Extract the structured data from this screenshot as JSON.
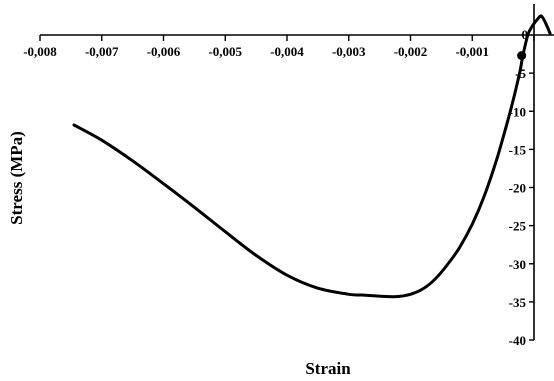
{
  "chart_data": {
    "type": "line",
    "title": "",
    "xlabel": "Strain",
    "ylabel": "Stress (MPa)",
    "xlim": [
      -0.008,
      0.0003
    ],
    "ylim": [
      -40,
      3
    ],
    "x_ticks": [
      -0.008,
      -0.007,
      -0.006,
      -0.005,
      -0.004,
      -0.003,
      -0.002,
      -0.001,
      0
    ],
    "x_tick_labels": [
      "-0,008",
      "-0,007",
      "-0,006",
      "-0,005",
      "-0,004",
      "-0,003",
      "-0,002",
      "-0,001",
      "0"
    ],
    "y_ticks": [
      0,
      -5,
      -10,
      -15,
      -20,
      -25,
      -30,
      -35,
      -40
    ],
    "y_tick_labels": [
      "0",
      "-5",
      "-10",
      "-15",
      "-20",
      "-25",
      "-30",
      "-35",
      "-40"
    ],
    "grid": false,
    "legend": "none",
    "line_color": "#000000",
    "series": [
      {
        "x": [
          -0.00745,
          -0.007,
          -0.0065,
          -0.006,
          -0.0055,
          -0.005,
          -0.0045,
          -0.004,
          -0.0035,
          -0.003,
          -0.0028,
          -0.0026,
          -0.0024,
          -0.0022,
          -0.002,
          -0.0018,
          -0.0016,
          -0.0014,
          -0.0012,
          -0.001,
          -0.0008,
          -0.0006,
          -0.0004,
          -0.0003,
          -0.00022,
          -0.00018,
          -0.0001,
          -4e-05,
          0.0,
          4e-05,
          8e-05,
          0.00011,
          0.00014,
          0.00018,
          0.00022,
          0.00026
        ],
        "y": [
          -11.8,
          -13.8,
          -16.5,
          -19.5,
          -22.6,
          -25.8,
          -28.9,
          -31.5,
          -33.2,
          -34.0,
          -34.1,
          -34.2,
          -34.3,
          -34.3,
          -34.0,
          -33.3,
          -32.0,
          -30.1,
          -27.8,
          -24.8,
          -21.0,
          -16.2,
          -10.5,
          -7.3,
          -4.5,
          -2.7,
          0.0,
          1.0,
          1.5,
          1.9,
          2.3,
          2.5,
          2.3,
          1.7,
          1.0,
          0.2
        ]
      }
    ],
    "markers": [
      {
        "x": -0.0002,
        "y": -2.7
      }
    ]
  }
}
